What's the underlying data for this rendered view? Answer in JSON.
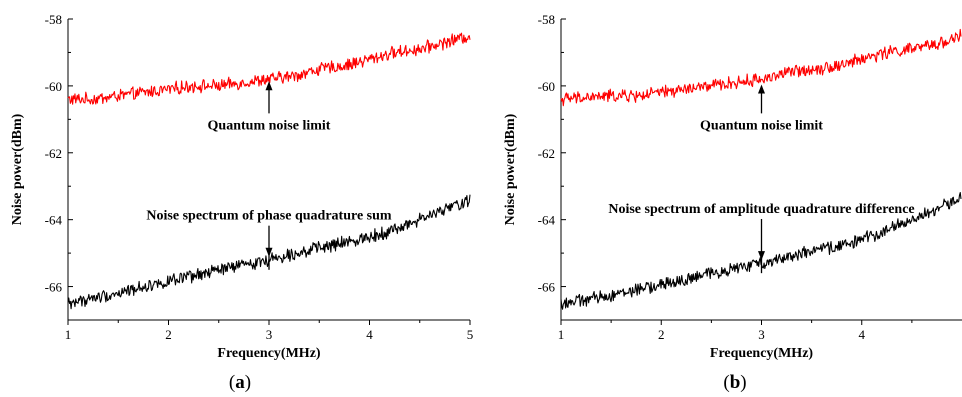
{
  "chart_data": [
    {
      "type": "line",
      "caption": "(a)",
      "xlabel": "Frequency(MHz)",
      "ylabel": "Noise power(dBm)",
      "xlim": [
        1,
        5
      ],
      "ylim": [
        -67,
        -58
      ],
      "xticks": [
        "1",
        "2",
        "3",
        "4",
        "5"
      ],
      "yticks": [
        "-58",
        "-60",
        "-62",
        "-64",
        "-66"
      ],
      "grid": false,
      "series": [
        {
          "color": "#ff0000",
          "x": [
            1.0,
            1.25,
            1.5,
            1.75,
            2.0,
            2.25,
            2.5,
            2.75,
            3.0,
            3.25,
            3.5,
            3.75,
            4.0,
            4.25,
            4.5,
            4.75,
            5.0
          ],
          "y": [
            -60.4,
            -60.4,
            -60.3,
            -60.2,
            -60.1,
            -60.0,
            -60.0,
            -59.9,
            -59.8,
            -59.7,
            -59.5,
            -59.4,
            -59.2,
            -59.0,
            -58.9,
            -58.7,
            -58.5
          ]
        },
        {
          "color": "#000000",
          "x": [
            1.0,
            1.25,
            1.5,
            1.75,
            2.0,
            2.25,
            2.5,
            2.75,
            3.0,
            3.25,
            3.5,
            3.75,
            4.0,
            4.25,
            4.5,
            4.75,
            5.0
          ],
          "y": [
            -66.5,
            -66.35,
            -66.2,
            -66.0,
            -65.85,
            -65.7,
            -65.5,
            -65.35,
            -65.2,
            -65.0,
            -64.85,
            -64.7,
            -64.5,
            -64.3,
            -64.0,
            -63.7,
            -63.4
          ]
        }
      ],
      "annotations": [
        {
          "text": "Quantum noise limit",
          "x": 3.0,
          "y": -59.8,
          "label_y": -61.3
        },
        {
          "text": "Noise spectrum of phase quadrature sum",
          "x": 3.0,
          "y": -65.2,
          "label_y": -64.0
        }
      ]
    },
    {
      "type": "line",
      "caption": "(b)",
      "xlabel": "Frequency(MHz)",
      "ylabel": "Noise power(dBm)",
      "xlim": [
        1,
        5
      ],
      "ylim": [
        -67,
        -58
      ],
      "xticks": [
        "1",
        "2",
        "3",
        "4"
      ],
      "yticks": [
        "-58",
        "-60",
        "-62",
        "-64",
        "-66"
      ],
      "grid": false,
      "series": [
        {
          "color": "#ff0000",
          "x": [
            1.0,
            1.25,
            1.5,
            1.75,
            2.0,
            2.25,
            2.5,
            2.75,
            3.0,
            3.25,
            3.5,
            3.75,
            4.0,
            4.25,
            4.5,
            4.75,
            4.99
          ],
          "y": [
            -60.4,
            -60.35,
            -60.3,
            -60.3,
            -60.2,
            -60.1,
            -60.0,
            -59.9,
            -59.8,
            -59.6,
            -59.5,
            -59.4,
            -59.2,
            -59.0,
            -58.9,
            -58.75,
            -58.5
          ]
        },
        {
          "color": "#000000",
          "x": [
            1.0,
            1.25,
            1.5,
            1.75,
            2.0,
            2.25,
            2.5,
            2.75,
            3.0,
            3.25,
            3.5,
            3.75,
            4.0,
            4.25,
            4.5,
            4.75,
            4.99
          ],
          "y": [
            -66.5,
            -66.4,
            -66.25,
            -66.1,
            -65.95,
            -65.8,
            -65.6,
            -65.45,
            -65.3,
            -65.1,
            -64.95,
            -64.8,
            -64.6,
            -64.3,
            -64.0,
            -63.7,
            -63.3
          ]
        }
      ],
      "annotations": [
        {
          "text": "Quantum noise limit",
          "x": 3.0,
          "y": -59.9,
          "label_y": -61.3
        },
        {
          "text": "Noise spectrum of amplitude quadrature difference",
          "x": 3.0,
          "y": -65.3,
          "label_y": -63.8
        }
      ]
    }
  ]
}
